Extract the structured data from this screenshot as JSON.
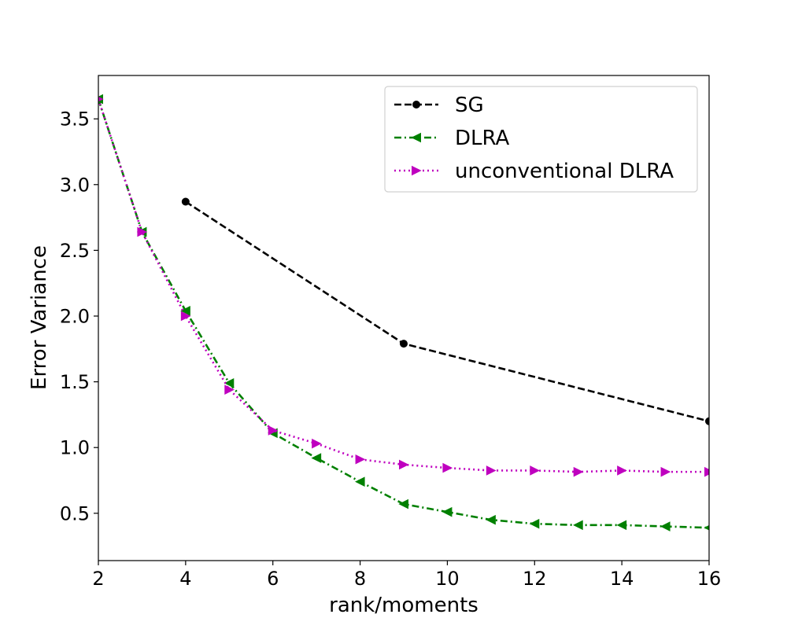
{
  "chart_data": {
    "type": "line",
    "title": "",
    "xlabel": "rank/moments",
    "ylabel": "Error Variance",
    "xlim": [
      2,
      16
    ],
    "ylim": [
      0.14,
      3.83
    ],
    "xticks": [
      2,
      4,
      6,
      8,
      10,
      12,
      14,
      16
    ],
    "yticks": [
      0.5,
      1.0,
      1.5,
      2.0,
      2.5,
      3.0,
      3.5
    ],
    "ytick_labels": [
      "0.5",
      "1.0",
      "1.5",
      "2.0",
      "2.5",
      "3.0",
      "3.5"
    ],
    "grid": false,
    "legend_position": "top-right",
    "series": [
      {
        "name": "SG",
        "color": "#000000",
        "linestyle": "dashed",
        "marker": "circle",
        "x": [
          4,
          9,
          16
        ],
        "y": [
          2.87,
          1.79,
          1.2
        ]
      },
      {
        "name": "DLRA",
        "color": "#008000",
        "linestyle": "dashdot",
        "marker": "triangle-left",
        "x": [
          2,
          3,
          4,
          5,
          6,
          7,
          8,
          9,
          10,
          11,
          12,
          13,
          14,
          15,
          16
        ],
        "y": [
          3.65,
          2.64,
          2.04,
          1.49,
          1.11,
          0.92,
          0.74,
          0.57,
          0.51,
          0.45,
          0.42,
          0.41,
          0.41,
          0.4,
          0.39
        ]
      },
      {
        "name": "unconventional DLRA",
        "color": "#bf00bf",
        "linestyle": "dotted",
        "marker": "triangle-right",
        "x": [
          2,
          3,
          4,
          5,
          6,
          7,
          8,
          9,
          10,
          11,
          12,
          13,
          14,
          15,
          16
        ],
        "y": [
          3.65,
          2.64,
          2.0,
          1.44,
          1.13,
          1.03,
          0.91,
          0.87,
          0.845,
          0.825,
          0.825,
          0.815,
          0.825,
          0.815,
          0.815
        ]
      }
    ]
  }
}
